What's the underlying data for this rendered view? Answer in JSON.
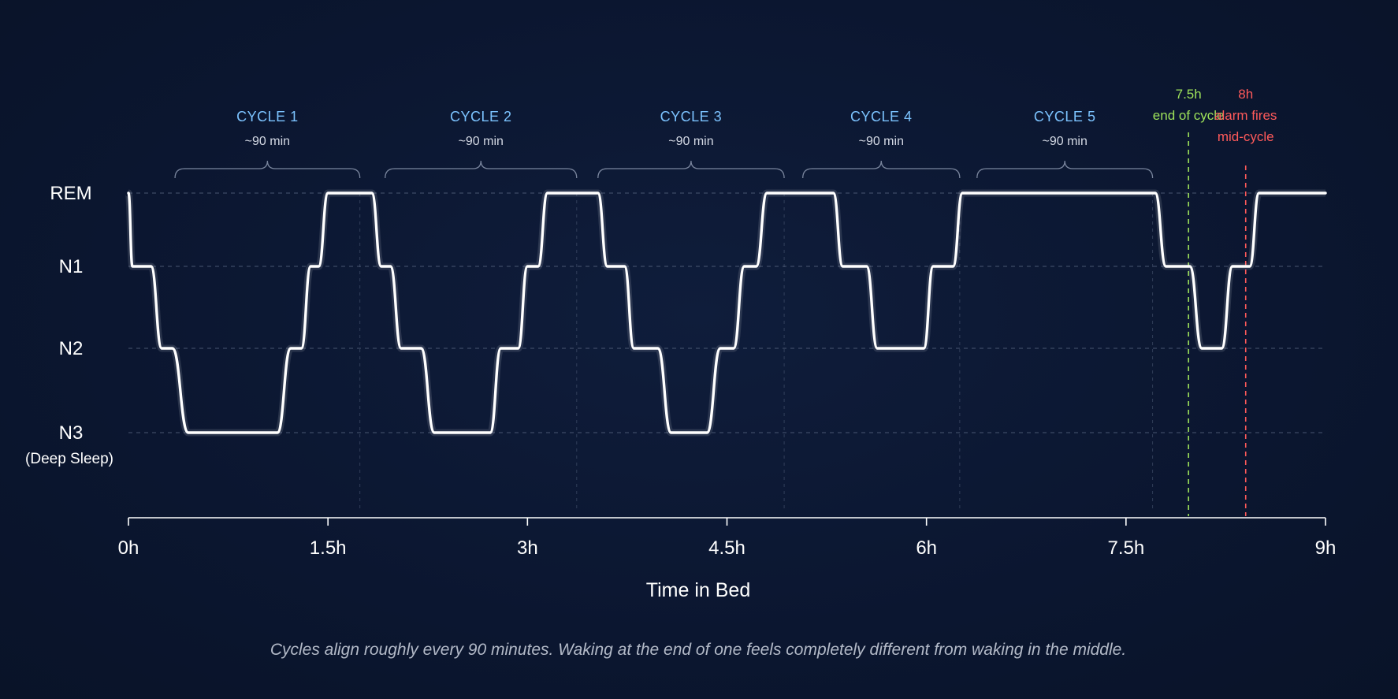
{
  "chart_data": {
    "type": "line",
    "xlabel": "Time in Bed",
    "x_ticks": [
      "0h",
      "1.5h",
      "3h",
      "4.5h",
      "6h",
      "7.5h",
      "9h"
    ],
    "x_tick_values": [
      0,
      1.5,
      3,
      4.5,
      6,
      7.5,
      9
    ],
    "xlim": [
      0,
      9
    ],
    "y_levels": [
      {
        "key": "REM",
        "label": "REM",
        "sublabel": ""
      },
      {
        "key": "N1",
        "label": "N1",
        "sublabel": ""
      },
      {
        "key": "N2",
        "label": "N2",
        "sublabel": ""
      },
      {
        "key": "N3",
        "label": "N3",
        "sublabel": "(Deep Sleep)"
      }
    ],
    "series": [
      {
        "points": [
          [
            0.0,
            "REM"
          ],
          [
            0.03,
            "N1"
          ],
          [
            0.17,
            "N1"
          ],
          [
            0.25,
            "N2"
          ],
          [
            0.33,
            "N2"
          ],
          [
            0.45,
            "N3"
          ],
          [
            1.12,
            "N3"
          ],
          [
            1.22,
            "N2"
          ],
          [
            1.3,
            "N2"
          ],
          [
            1.37,
            "N1"
          ],
          [
            1.43,
            "N1"
          ],
          [
            1.5,
            "REM"
          ],
          [
            1.83,
            "REM"
          ],
          [
            1.9,
            "N1"
          ],
          [
            1.97,
            "N1"
          ],
          [
            2.05,
            "N2"
          ],
          [
            2.2,
            "N2"
          ],
          [
            2.3,
            "N3"
          ],
          [
            2.72,
            "N3"
          ],
          [
            2.8,
            "N2"
          ],
          [
            2.93,
            "N2"
          ],
          [
            3.0,
            "N1"
          ],
          [
            3.08,
            "N1"
          ],
          [
            3.15,
            "REM"
          ],
          [
            3.53,
            "REM"
          ],
          [
            3.6,
            "N1"
          ],
          [
            3.73,
            "N1"
          ],
          [
            3.8,
            "N2"
          ],
          [
            3.98,
            "N2"
          ],
          [
            4.08,
            "N3"
          ],
          [
            4.35,
            "N3"
          ],
          [
            4.45,
            "N2"
          ],
          [
            4.55,
            "N2"
          ],
          [
            4.63,
            "N1"
          ],
          [
            4.72,
            "N1"
          ],
          [
            4.8,
            "REM"
          ],
          [
            5.3,
            "REM"
          ],
          [
            5.37,
            "N1"
          ],
          [
            5.55,
            "N1"
          ],
          [
            5.63,
            "N2"
          ],
          [
            5.98,
            "N2"
          ],
          [
            6.05,
            "N1"
          ],
          [
            6.2,
            "N1"
          ],
          [
            6.27,
            "REM"
          ],
          [
            7.72,
            "REM"
          ],
          [
            7.8,
            "N1"
          ],
          [
            7.98,
            "N1"
          ],
          [
            8.07,
            "N2"
          ],
          [
            8.22,
            "N2"
          ],
          [
            8.3,
            "N1"
          ],
          [
            8.43,
            "N1"
          ],
          [
            8.5,
            "REM"
          ],
          [
            9.0,
            "REM"
          ]
        ]
      }
    ],
    "cycles": [
      {
        "title": "CYCLE 1",
        "sub": "~90 min",
        "start": 0.35,
        "end": 1.74
      },
      {
        "title": "CYCLE 2",
        "sub": "~90 min",
        "start": 1.93,
        "end": 3.37
      },
      {
        "title": "CYCLE 3",
        "sub": "~90 min",
        "start": 3.53,
        "end": 4.93
      },
      {
        "title": "CYCLE 4",
        "sub": "~90 min",
        "start": 5.07,
        "end": 6.25
      },
      {
        "title": "CYCLE 5",
        "sub": "~90 min",
        "start": 6.38,
        "end": 7.7
      }
    ],
    "markers": [
      {
        "x": 7.97,
        "lines": [
          "7.5h",
          "end of cycle"
        ],
        "color": "#9ee35a"
      },
      {
        "x": 8.4,
        "lines": [
          "8h",
          "alarm fires",
          "mid-cycle"
        ],
        "color": "#ff5a5a"
      }
    ],
    "caption": "Cycles align roughly every 90 minutes. Waking at the end of one feels completely different from waking in the middle.",
    "line_color": "#ffffff",
    "background_color": "#0b1630",
    "grid": "dashed horizontal at stage levels"
  }
}
